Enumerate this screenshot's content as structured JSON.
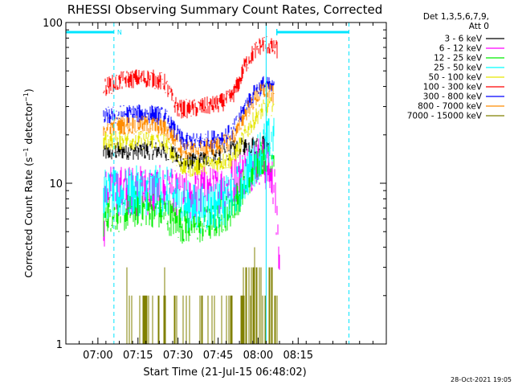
{
  "chart_data": {
    "type": "line",
    "title": "RHESSI Observing Summary Count Rates, Corrected",
    "xlabel": "Start Time (21-Jul-15 06:48:02)",
    "ylabel": "Corrected Count Rate (s⁻¹ detector⁻¹)",
    "ylabel_parts": [
      "Corrected Count Rate (s",
      "−1",
      " detector",
      "−1",
      ")"
    ],
    "yscale": "log",
    "ylim": [
      1,
      100
    ],
    "xlim_minutes": [
      48,
      168
    ],
    "x_ticks": [
      {
        "label": "07:00",
        "minute": 60
      },
      {
        "label": "07:15",
        "minute": 75
      },
      {
        "label": "07:30",
        "minute": 90
      },
      {
        "label": "07:45",
        "minute": 105
      },
      {
        "label": "08:00",
        "minute": 120
      },
      {
        "label": "08:15",
        "minute": 135
      }
    ],
    "y_ticks": [
      {
        "label": "1",
        "value": 1
      },
      {
        "label": "10",
        "value": 10
      },
      {
        "label": "100",
        "value": 100
      }
    ],
    "legend_header": [
      "Det 1,3,5,6,7,9,",
      "Att 0"
    ],
    "legend_position": "right",
    "timestamp": "28-Oct-2021 19:05",
    "flags": {
      "label": "N",
      "color": "#00e5ff",
      "segments": [
        [
          48,
          66
        ],
        [
          127,
          154
        ]
      ],
      "vlines": [
        66,
        123,
        154
      ]
    },
    "series": [
      {
        "name": "3 - 6 keV",
        "color": "#000000",
        "x": [
          62,
          70,
          80,
          85,
          88,
          92,
          96,
          100,
          105,
          110,
          115,
          120,
          122,
          124
        ],
        "y": [
          15.5,
          16,
          16,
          16,
          15,
          13.5,
          13.5,
          14,
          15,
          16,
          17,
          17.5,
          17.5,
          17
        ]
      },
      {
        "name": "6 - 12 keV",
        "color": "#ff00ff",
        "x": [
          62,
          63,
          70,
          80,
          85,
          88,
          92,
          96,
          100,
          105,
          110,
          115,
          118,
          120,
          122,
          124,
          126,
          128
        ],
        "y": [
          4,
          9,
          9,
          9,
          9,
          8.5,
          8,
          8.5,
          9,
          9,
          10,
          12,
          13,
          14,
          13.5,
          12,
          10,
          3
        ]
      },
      {
        "name": "12 - 25 keV",
        "color": "#00ee00",
        "x": [
          62,
          63,
          70,
          75,
          80,
          85,
          88,
          92,
          96,
          100,
          105,
          110,
          113,
          115,
          118,
          120,
          122,
          124,
          126
        ],
        "y": [
          6,
          6.5,
          6.5,
          7,
          7,
          6.5,
          6,
          5.5,
          5.5,
          5.5,
          6,
          7,
          8.5,
          10,
          12,
          14,
          15,
          15.5,
          15
        ]
      },
      {
        "name": "25 - 50 keV",
        "color": "#00ffff",
        "x": [
          62,
          63,
          70,
          75,
          80,
          85,
          88,
          92,
          96,
          100,
          105,
          110,
          113,
          115,
          118,
          120,
          122,
          124,
          126
        ],
        "y": [
          8.5,
          8.5,
          8.5,
          9,
          9,
          9,
          8.5,
          7.5,
          7,
          7,
          7.5,
          8,
          9.5,
          11,
          13,
          15,
          17,
          18,
          18
        ]
      },
      {
        "name": "50 - 100 keV",
        "color": "#e6e600",
        "x": [
          62,
          63,
          70,
          80,
          85,
          88,
          92,
          96,
          100,
          105,
          110,
          113,
          115,
          118,
          120,
          122,
          124,
          126
        ],
        "y": [
          18,
          18.5,
          18.5,
          18.5,
          18,
          15.5,
          12.5,
          12.5,
          13,
          13.5,
          14,
          17,
          20,
          24,
          27,
          29,
          30,
          30
        ]
      },
      {
        "name": "100 - 300 keV",
        "color": "#ff0000",
        "x": [
          62,
          63,
          70,
          75,
          80,
          85,
          88,
          90,
          95,
          100,
          105,
          110,
          113,
          115,
          118,
          120,
          122,
          124,
          126,
          127
        ],
        "y": [
          40,
          40,
          44,
          45,
          45,
          42,
          33,
          29,
          29,
          30,
          31,
          34,
          43,
          54,
          64,
          70,
          74,
          72,
          68,
          68
        ]
      },
      {
        "name": "300 - 800 keV",
        "color": "#0000ff",
        "x": [
          62,
          63,
          70,
          80,
          85,
          88,
          92,
          96,
          100,
          105,
          110,
          113,
          115,
          118,
          120,
          122,
          124,
          126
        ],
        "y": [
          26,
          26,
          27,
          27,
          26,
          22,
          18,
          18,
          18.5,
          19,
          20.5,
          25,
          30,
          35,
          39,
          41,
          40,
          38
        ]
      },
      {
        "name": "800 - 7000 keV",
        "color": "#ff8c00",
        "x": [
          62,
          63,
          70,
          80,
          85,
          88,
          92,
          96,
          100,
          105,
          110,
          113,
          115,
          118,
          120,
          122,
          124,
          126
        ],
        "y": [
          22.5,
          22.5,
          23,
          23,
          22,
          19.5,
          16,
          16,
          16.5,
          17,
          18.5,
          22.5,
          27,
          32,
          35,
          38,
          37,
          35
        ]
      },
      {
        "name": "7000 - 15000 keV",
        "color": "#808000",
        "x": [
          70,
          71,
          72,
          73,
          84,
          85,
          86,
          112,
          114,
          116,
          118,
          120,
          122,
          124,
          126,
          127
        ],
        "y": [
          1,
          2,
          1,
          2,
          1,
          2,
          1,
          1,
          2,
          2,
          2.5,
          3,
          2,
          3,
          2.5,
          2
        ]
      }
    ]
  }
}
